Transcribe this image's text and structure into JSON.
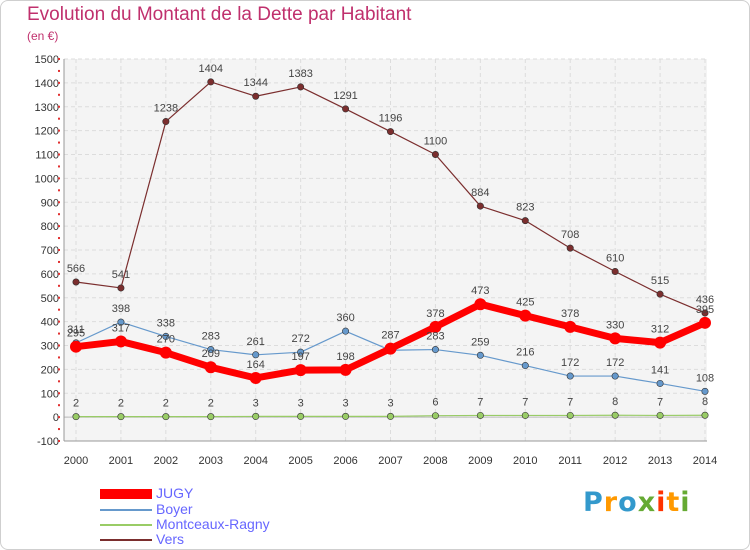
{
  "header": {
    "title": "Evolution du Montant de la Dette par Habitant",
    "subtitle": "(en €)"
  },
  "chart_data": {
    "type": "line",
    "title": "Evolution du Montant de la Dette par Habitant",
    "subtitle": "(en €)",
    "xlabel": "",
    "ylabel": "",
    "categories": [
      "2000",
      "2001",
      "2002",
      "2003",
      "2004",
      "2005",
      "2006",
      "2007",
      "2008",
      "2009",
      "2010",
      "2011",
      "2012",
      "2013",
      "2014"
    ],
    "ylim": [
      -100,
      1500
    ],
    "yticks": [
      "-100",
      "0",
      "100",
      "200",
      "300",
      "400",
      "500",
      "600",
      "700",
      "800",
      "900",
      "1000",
      "1100",
      "1200",
      "1300",
      "1400",
      "1500"
    ],
    "grid": true,
    "legend_position": "bottom-left",
    "series": [
      {
        "name": "JUGY",
        "color": "#ff0000",
        "values": [
          295,
          317,
          270,
          209,
          164,
          197,
          198,
          287,
          378,
          473,
          425,
          378,
          330,
          312,
          395
        ],
        "labels": [
          "295",
          "317",
          "270",
          "209",
          "164",
          "197",
          "198",
          "287",
          "378",
          "473",
          "425",
          "378",
          "330",
          "312",
          "395"
        ]
      },
      {
        "name": "Boyer",
        "color": "#6699cc",
        "values": [
          311,
          398,
          338,
          283,
          261,
          272,
          360,
          280,
          283,
          259,
          216,
          172,
          172,
          141,
          108
        ],
        "labels": [
          "311",
          "398",
          "338",
          "283",
          "261",
          "272",
          "360",
          "",
          "283",
          "259",
          "216",
          "172",
          "172",
          "141",
          "108"
        ]
      },
      {
        "name": "Montceaux-Ragny",
        "color": "#99cc66",
        "values": [
          2,
          2,
          2,
          2,
          3,
          3,
          3,
          3,
          6,
          7,
          7,
          7,
          8,
          7,
          8
        ],
        "labels": [
          "2",
          "2",
          "2",
          "2",
          "3",
          "3",
          "3",
          "3",
          "6",
          "7",
          "7",
          "7",
          "8",
          "7",
          "8"
        ]
      },
      {
        "name": "Vers",
        "color": "#7b2e2e",
        "values": [
          566,
          541,
          1238,
          1404,
          1344,
          1383,
          1291,
          1196,
          1100,
          884,
          823,
          708,
          610,
          515,
          436
        ],
        "labels": [
          "566",
          "541",
          "1238",
          "1404",
          "1344",
          "1383",
          "1291",
          "1196",
          "1100",
          "884",
          "823",
          "708",
          "610",
          "515",
          "436"
        ]
      }
    ]
  },
  "legend": {
    "items": [
      {
        "label": "JUGY",
        "color": "#ff0000"
      },
      {
        "label": "Boyer",
        "color": "#6699cc"
      },
      {
        "label": "Montceaux-Ragny",
        "color": "#99cc66"
      },
      {
        "label": "Vers",
        "color": "#7b2e2e"
      }
    ]
  },
  "logo": {
    "text": "Proxiti",
    "letters": [
      "P",
      "r",
      "o",
      "x",
      "i",
      "t",
      "i"
    ],
    "colors": [
      "#3399cc",
      "#ff9900",
      "#3399cc",
      "#66aa33",
      "#ff3300",
      "#ff9900",
      "#66aa33"
    ]
  }
}
